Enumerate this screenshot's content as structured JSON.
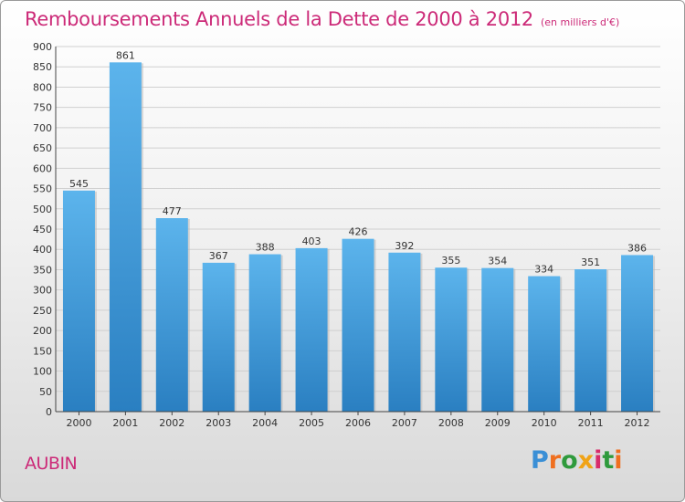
{
  "chart_data": {
    "type": "bar",
    "title": "Remboursements Annuels de la Dette de 2000 à 2012",
    "subtitle": "(en milliers d'€)",
    "categories": [
      "2000",
      "2001",
      "2002",
      "2003",
      "2004",
      "2005",
      "2006",
      "2007",
      "2008",
      "2009",
      "2010",
      "2011",
      "2012"
    ],
    "values": [
      545,
      861,
      477,
      367,
      388,
      403,
      426,
      392,
      355,
      354,
      334,
      351,
      386
    ],
    "ylim": [
      0,
      900
    ],
    "yticks": [
      0,
      50,
      100,
      150,
      200,
      250,
      300,
      350,
      400,
      450,
      500,
      550,
      600,
      650,
      700,
      750,
      800,
      850,
      900
    ],
    "grid": true,
    "bar_color_top": "#5cb4ec",
    "bar_color_bottom": "#2a7fc1"
  },
  "footer": {
    "commune": "AUBIN",
    "logo_text": "Proxiti"
  },
  "colors": {
    "accent": "#cc2a78"
  }
}
